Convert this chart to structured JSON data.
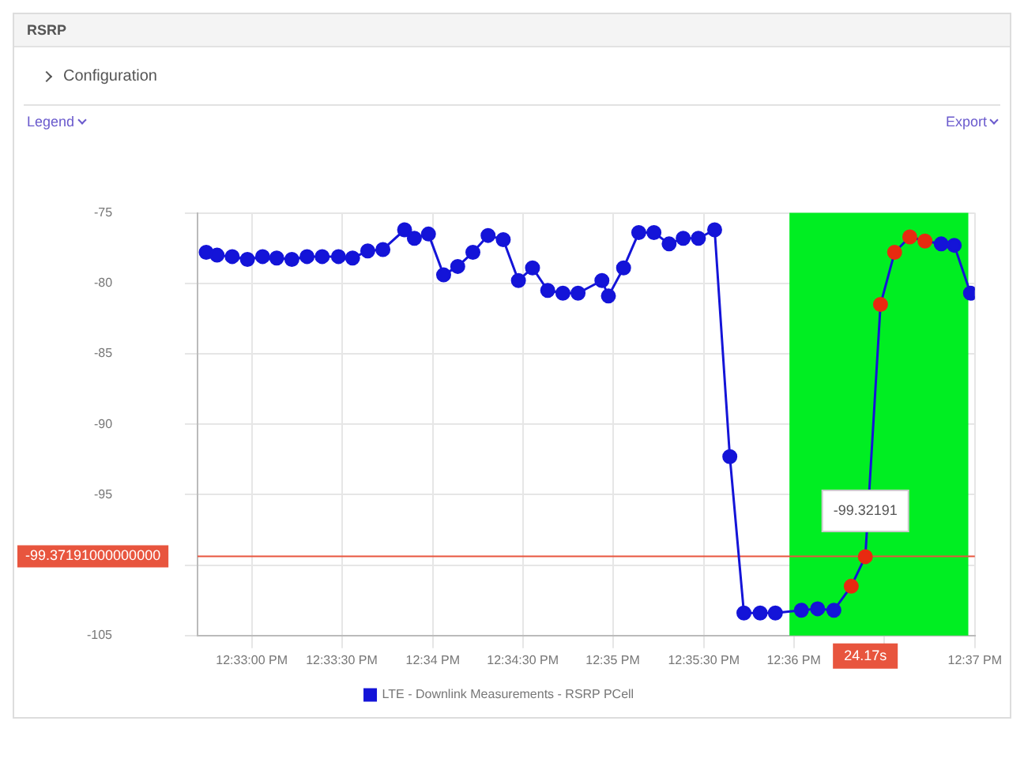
{
  "chart_data": {
    "type": "line",
    "title": "RSRP",
    "annotations": [
      "Configuration",
      "Legend",
      "Export",
      {
        "text": "-99.32191",
        "x": 12.6066,
        "y": -99.4
      },
      "24.17s"
    ],
    "x": [
      12.5458,
      12.5468,
      12.5482,
      12.5496,
      12.551,
      12.5523,
      12.5537,
      12.5551,
      12.5565,
      12.558,
      12.5593,
      12.5607,
      12.5621,
      12.5641,
      12.565,
      12.5663,
      12.5677,
      12.569,
      12.5704,
      12.5718,
      12.5732,
      12.5746,
      12.5759,
      12.5773,
      12.5787,
      12.5801,
      12.5823,
      12.5829,
      12.5843,
      12.5857,
      12.5871,
      12.5885,
      12.5898,
      12.5912,
      12.5927,
      12.5941,
      12.5954,
      12.5969,
      12.5983,
      12.6007,
      12.6022,
      12.6037,
      12.6053,
      12.6066,
      12.608,
      12.6093,
      12.6107,
      12.6121,
      12.6136,
      12.6148,
      12.6163
    ],
    "series": [
      {
        "name": "LTE - Downlink Measurements - RSRP PCell",
        "color": "#1414d8",
        "colors": [
          "#1414d8",
          "#1414d8",
          "#1414d8",
          "#1414d8",
          "#1414d8",
          "#1414d8",
          "#1414d8",
          "#1414d8",
          "#1414d8",
          "#1414d8",
          "#1414d8",
          "#1414d8",
          "#1414d8",
          "#1414d8",
          "#1414d8",
          "#1414d8",
          "#1414d8",
          "#1414d8",
          "#1414d8",
          "#1414d8",
          "#1414d8",
          "#1414d8",
          "#1414d8",
          "#1414d8",
          "#1414d8",
          "#1414d8",
          "#1414d8",
          "#1414d8",
          "#1414d8",
          "#1414d8",
          "#1414d8",
          "#1414d8",
          "#1414d8",
          "#1414d8",
          "#1414d8",
          "#1414d8",
          "#1414d8",
          "#1414d8",
          "#1414d8",
          "#1414d8",
          "#1414d8",
          "#1414d8",
          "#e82a10",
          "#e82a10",
          "#e82a10",
          "#e82a10",
          "#e82a10",
          "#e82a10",
          "#1414d8",
          "#1414d8",
          "#1414d8"
        ],
        "values": [
          -77.8,
          -78.0,
          -78.1,
          -78.3,
          -78.1,
          -78.2,
          -78.3,
          -78.1,
          -78.1,
          -78.1,
          -78.2,
          -77.7,
          -77.6,
          -76.2,
          -76.8,
          -76.5,
          -79.4,
          -78.8,
          -77.8,
          -76.6,
          -76.9,
          -79.8,
          -78.9,
          -80.5,
          -80.7,
          -80.7,
          -79.8,
          -80.9,
          -78.9,
          -76.4,
          -76.4,
          -77.2,
          -76.8,
          -76.8,
          -76.2,
          -92.3,
          -103.4,
          -103.4,
          -103.4,
          -103.2,
          -103.1,
          -103.2,
          -101.5,
          -99.4,
          -81.5,
          -77.8,
          -76.7,
          -77.0,
          -77.2,
          -77.3,
          -80.7
        ]
      }
    ],
    "xlim": [
      12.545,
      12.6167
    ],
    "xticks": [
      {
        "value": 12.55,
        "label": "12:33:00 PM"
      },
      {
        "value": 12.5583,
        "label": "12:33:30 PM"
      },
      {
        "value": 12.5667,
        "label": "12:34 PM"
      },
      {
        "value": 12.575,
        "label": "12:34:30 PM"
      },
      {
        "value": 12.5833,
        "label": "12:35 PM"
      },
      {
        "value": 12.5917,
        "label": "12:35:30 PM"
      },
      {
        "value": 12.6,
        "label": "12:36 PM"
      },
      {
        "value": 12.6083,
        "label": null
      },
      {
        "value": 12.6167,
        "label": "12:37 PM"
      }
    ],
    "ylim": [
      -105,
      -75
    ],
    "yticks": [
      -75,
      -80,
      -85,
      -90,
      -95,
      {
        "value": -100,
        "label": null
      },
      -105
    ],
    "ref_lines": [
      {
        "axis": "y",
        "value": -99.37191,
        "label": "-99.37191000000000",
        "color": "#e8553e"
      }
    ],
    "bands": [
      {
        "axis": "x",
        "from": 12.5996,
        "to": 12.6161,
        "color": "#00ee22"
      }
    ],
    "grid": true,
    "legend": "bottom",
    "marker": "circle",
    "line_style": "solid"
  }
}
